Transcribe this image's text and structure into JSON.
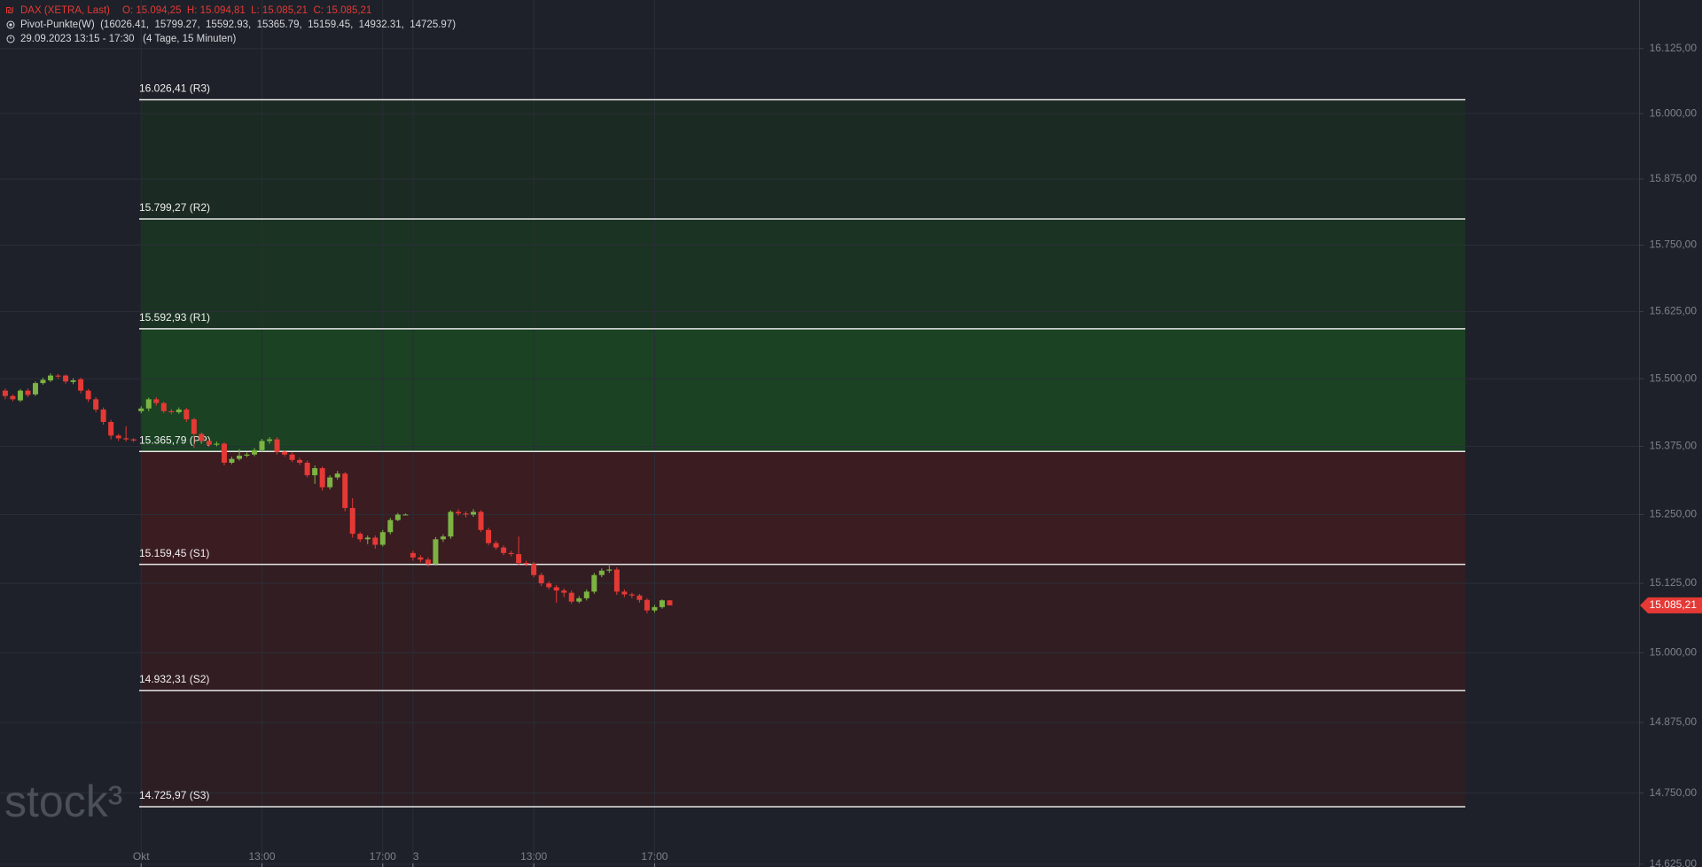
{
  "chart_data": {
    "type": "candlestick",
    "title": "DAX (XETRA, Last)",
    "ohlc_text": "O: 15.094,25  H: 15.094,81  L: 15.085,21  C: 15.085,21",
    "indicator": "Pivot-Punkte(W)  (16026.41,  15799.27,  15592.93,  15365.79,  15159.45,  14932.31,  14725.97)",
    "period": "29.09.2023 13:15 - 17:30   (4 Tage, 15 Minuten)",
    "watermark": "stock³",
    "log_scale": true,
    "grid": true,
    "up_color": "#7cb342",
    "down_color": "#e53935",
    "xlim": [
      -0.693,
      216.38
    ],
    "ylim": [
      14620,
      16219
    ],
    "xticks": [
      {
        "value": 18,
        "label": "Okt"
      },
      {
        "value": 34,
        "label": "13:00"
      },
      {
        "value": 50,
        "label": "17:00"
      },
      {
        "value": 54,
        "label": "3"
      },
      {
        "value": 70,
        "label": "13:00"
      },
      {
        "value": 86,
        "label": "17:00"
      }
    ],
    "yticks": [
      {
        "value": 16125,
        "label": "16.125,00"
      },
      {
        "value": 16000,
        "label": "16.000,00"
      },
      {
        "value": 15875,
        "label": "15.875,00"
      },
      {
        "value": 15750,
        "label": "15.750,00"
      },
      {
        "value": 15625,
        "label": "15.625,00"
      },
      {
        "value": 15500,
        "label": "15.500,00"
      },
      {
        "value": 15375,
        "label": "15.375,00"
      },
      {
        "value": 15250,
        "label": "15.250,00"
      },
      {
        "value": 15125,
        "label": "15.125,00"
      },
      {
        "value": 15000,
        "label": "15.000,00"
      },
      {
        "value": 14875,
        "label": "14.875,00"
      },
      {
        "value": 14750,
        "label": "14.750,00"
      },
      {
        "value": 14625,
        "label": "14.625,00"
      }
    ],
    "pivots": [
      {
        "value": 16026.41,
        "label": "16.026,41 (R3)"
      },
      {
        "value": 15799.27,
        "label": "15.799,27 (R2)"
      },
      {
        "value": 15592.93,
        "label": "15.592,93 (R1)"
      },
      {
        "value": 15365.79,
        "label": "15.365,79 (PP)"
      },
      {
        "value": 15159.45,
        "label": "15.159,45 (S1)"
      },
      {
        "value": 14932.31,
        "label": "14.932,31 (S2)"
      },
      {
        "value": 14725.97,
        "label": "14.725,97 (S3)"
      }
    ],
    "zone_colors": [
      "#1b2a22",
      "#1b3322",
      "#1a4223",
      "#3a1c21",
      "#321d22",
      "#2c1e23"
    ],
    "last_price": {
      "value": 15085.21,
      "label": "15.085,21",
      "color": "#e53935"
    },
    "x": [
      0,
      1,
      2,
      3,
      4,
      5,
      6,
      7,
      8,
      9,
      10,
      11,
      12,
      13,
      14,
      15,
      16,
      17,
      18,
      19,
      20,
      21,
      22,
      23,
      24,
      25,
      26,
      27,
      28,
      29,
      30,
      31,
      32,
      33,
      34,
      35,
      36,
      37,
      38,
      39,
      40,
      41,
      42,
      43,
      44,
      45,
      46,
      47,
      48,
      49,
      50,
      51,
      52,
      53,
      54,
      55,
      56,
      57,
      58,
      59,
      60,
      61,
      62,
      63,
      64,
      65,
      66,
      67,
      68,
      69,
      70,
      71,
      72,
      73,
      74,
      75,
      76,
      77,
      78,
      79,
      80,
      81,
      82,
      83,
      84,
      85,
      86,
      87,
      88
    ],
    "open": [
      15478,
      15468,
      15460,
      15478,
      15471,
      15492,
      15497,
      15506,
      15506,
      15494,
      15499,
      15478,
      15462,
      15443,
      15420,
      15395,
      15390,
      15388,
      15440,
      15445,
      15462,
      15455,
      15440,
      15438,
      15443,
      15425,
      15398,
      15385,
      15378,
      15380,
      15345,
      15352,
      15358,
      15360,
      15368,
      15385,
      15388,
      15365,
      15360,
      15350,
      15345,
      15322,
      15335,
      15300,
      15318,
      15325,
      15262,
      15215,
      15205,
      15208,
      15195,
      15218,
      15240,
      15250,
      15180,
      15172,
      15168,
      15160,
      15205,
      15210,
      15255,
      15252,
      15250,
      15255,
      15222,
      15198,
      15190,
      15180,
      15178,
      15162,
      15160,
      15140,
      15125,
      15118,
      15112,
      15108,
      15092,
      15098,
      15110,
      15140,
      15148,
      15150,
      15110,
      15105,
      15103,
      15095,
      15076,
      15082,
      15094.25
    ],
    "high": [
      15482,
      15471,
      15481,
      15482,
      15495,
      15502,
      15510,
      15509,
      15508,
      15501,
      15502,
      15481,
      15466,
      15447,
      15424,
      15398,
      15412,
      15390,
      15449,
      15465,
      15466,
      15458,
      15444,
      15447,
      15446,
      15428,
      15401,
      15388,
      15384,
      15383,
      15356,
      15370,
      15364,
      15372,
      15389,
      15392,
      15392,
      15368,
      15364,
      15354,
      15349,
      15340,
      15338,
      15322,
      15330,
      15328,
      15280,
      15218,
      15212,
      15212,
      15222,
      15244,
      15253,
      15252,
      15184,
      15176,
      15172,
      15209,
      15214,
      15258,
      15260,
      15256,
      15260,
      15258,
      15226,
      15202,
      15194,
      15184,
      15210,
      15166,
      15164,
      15144,
      15129,
      15122,
      15116,
      15112,
      15102,
      15114,
      15144,
      15152,
      15160,
      15154,
      15114,
      15108,
      15106,
      15098,
      15086,
      15096,
      15094.81
    ],
    "low": [
      15462,
      15458,
      15457,
      15466,
      15468,
      15489,
      15494,
      15500,
      15491,
      15490,
      15473,
      15457,
      15438,
      15415,
      15388,
      15385,
      15384,
      15383,
      15436,
      15440,
      15450,
      15436,
      15434,
      15435,
      15420,
      15372,
      15380,
      15374,
      15375,
      15340,
      15342,
      15349,
      15355,
      15357,
      15365,
      15380,
      15360,
      15356,
      15346,
      15341,
      15318,
      15306,
      15294,
      15296,
      15314,
      15256,
      15208,
      15200,
      15196,
      15188,
      15192,
      15214,
      15238,
      15249,
      15166,
      15163,
      15155,
      15157,
      15200,
      15206,
      15248,
      15245,
      15246,
      15218,
      15194,
      15186,
      15176,
      15174,
      15158,
      15156,
      15136,
      15120,
      15114,
      15090,
      15100,
      15088,
      15089,
      15094,
      15106,
      15136,
      15144,
      15104,
      15100,
      15098,
      15090,
      15071,
      15072,
      15079,
      15085.21
    ],
    "close": [
      15468,
      15462,
      15478,
      15470,
      15492,
      15498,
      15506,
      15504,
      15495,
      15497,
      15478,
      15462,
      15443,
      15420,
      15395,
      15390,
      15388,
      15386,
      15445,
      15462,
      15455,
      15440,
      15438,
      15443,
      15425,
      15398,
      15385,
      15378,
      15380,
      15345,
      15352,
      15358,
      15360,
      15368,
      15385,
      15388,
      15365,
      15360,
      15350,
      15345,
      15322,
      15335,
      15300,
      15318,
      15325,
      15262,
      15215,
      15205,
      15208,
      15195,
      15218,
      15240,
      15250,
      15250,
      15172,
      15168,
      15160,
      15205,
      15210,
      15255,
      15252,
      15250,
      15255,
      15222,
      15198,
      15190,
      15180,
      15178,
      15162,
      15160,
      15140,
      15125,
      15118,
      15112,
      15108,
      15092,
      15098,
      15110,
      15140,
      15148,
      15150,
      15110,
      15105,
      15103,
      15095,
      15076,
      15082,
      15094.25,
      15085.21
    ]
  }
}
